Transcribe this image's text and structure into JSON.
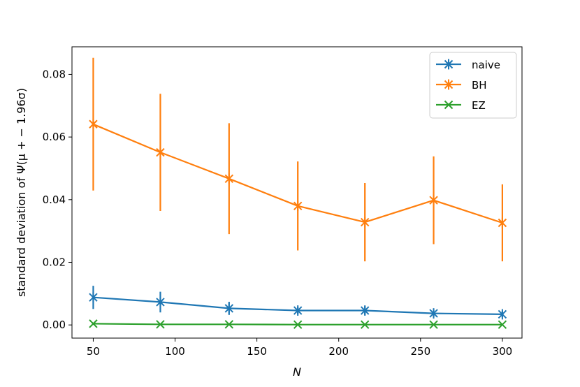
{
  "chart_data": {
    "type": "line",
    "title": "",
    "xlabel": "N",
    "ylabel": "standard deviation of Ψ(μ + − 1.96σ)",
    "xlim": [
      37,
      312
    ],
    "ylim": [
      -0.0042,
      0.0888
    ],
    "xticks": [
      50,
      100,
      150,
      200,
      250,
      300
    ],
    "xtick_labels": [
      "50",
      "100",
      "150",
      "200",
      "250",
      "300"
    ],
    "yticks": [
      0.0,
      0.02,
      0.04,
      0.06,
      0.08
    ],
    "ytick_labels": [
      "0.00",
      "0.02",
      "0.04",
      "0.06",
      "0.08"
    ],
    "grid": false,
    "legend_position": "top-right",
    "x": [
      50,
      91,
      133,
      175,
      216,
      258,
      300
    ],
    "series": [
      {
        "name": "naive",
        "color": "#1f77b4",
        "marker": "asterisk",
        "values": [
          0.0088,
          0.0073,
          0.0053,
          0.0046,
          0.0046,
          0.0037,
          0.0034
        ],
        "errors": [
          0.0037,
          0.0033,
          0.0021,
          0.0012,
          0.0014,
          0.0011,
          0.001
        ]
      },
      {
        "name": "BH",
        "color": "#ff7f0e",
        "marker": "asterisk",
        "values": [
          0.0641,
          0.0551,
          0.0467,
          0.038,
          0.0328,
          0.0398,
          0.0326
        ],
        "errors": [
          0.0212,
          0.0187,
          0.0177,
          0.0142,
          0.0125,
          0.014,
          0.0123
        ]
      },
      {
        "name": "EZ",
        "color": "#2ca02c",
        "marker": "x",
        "values": [
          0.0004,
          0.0002,
          0.0002,
          0.0001,
          0.0001,
          0.0001,
          0.0001
        ],
        "errors": [
          0,
          0,
          0,
          0,
          0,
          0,
          0
        ]
      }
    ]
  }
}
